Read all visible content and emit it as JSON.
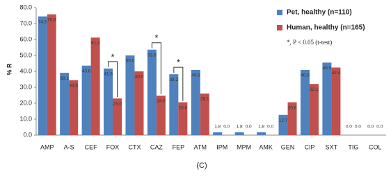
{
  "chart_data": {
    "type": "bar",
    "ylabel": "% R",
    "caption": "(C)",
    "categories": [
      "AMP",
      "A-S",
      "CEF",
      "FOX",
      "CTX",
      "CAZ",
      "FEP",
      "ATM",
      "IPM",
      "MPM",
      "AMK",
      "GEN",
      "CIP",
      "SXT",
      "TIG",
      "COL"
    ],
    "series": [
      {
        "name": "Pet, healthy (n=110)",
        "color": "#4f81bd",
        "values": [
          74.5,
          39.1,
          43.6,
          41.8,
          50.0,
          53.6,
          38.2,
          40.9,
          1.8,
          1.8,
          1.8,
          12.7,
          40.9,
          45.5,
          0.0,
          0.0
        ],
        "value_labels": [
          "74.5",
          "39.1",
          "43.6",
          "41.8",
          "50.0",
          "53.6",
          "38.2",
          "40.9",
          "1.8",
          "1.8",
          "1.8",
          "12.7",
          "40.9",
          "45.5",
          "0.0",
          "0.0"
        ]
      },
      {
        "name": "Human, healthy (n=165)",
        "color": "#c0504d",
        "values": [
          75.8,
          34.5,
          61.2,
          23.0,
          40.0,
          24.8,
          20.6,
          26.1,
          0.0,
          0.0,
          0.0,
          20.6,
          32.1,
          42.4,
          0.0,
          0.0
        ],
        "value_labels": [
          "75.8",
          "34.5",
          "61.2",
          "23.0",
          "40.0",
          "24.8",
          "20.6",
          "26.1",
          "0.0",
          "0.0",
          "0.0",
          "20.6",
          "32.1",
          "42.4",
          "0.0",
          "0.0"
        ]
      }
    ],
    "significance": {
      "label": "*",
      "categories": [
        "FOX",
        "CAZ",
        "FEP"
      ]
    },
    "note": "*, P < 0.05 (t-test)",
    "ylim": [
      0,
      80
    ],
    "yticks": [
      {
        "value": 0,
        "label": "0.0"
      },
      {
        "value": 10,
        "label": "10.0"
      },
      {
        "value": 20,
        "label": "20.0"
      },
      {
        "value": 30,
        "label": "30.0"
      },
      {
        "value": 40,
        "label": "40.0"
      },
      {
        "value": 50,
        "label": "50.0"
      },
      {
        "value": 60,
        "label": "60.0"
      },
      {
        "value": 70,
        "label": "70.0"
      },
      {
        "value": 80,
        "label": "80.0"
      }
    ]
  }
}
